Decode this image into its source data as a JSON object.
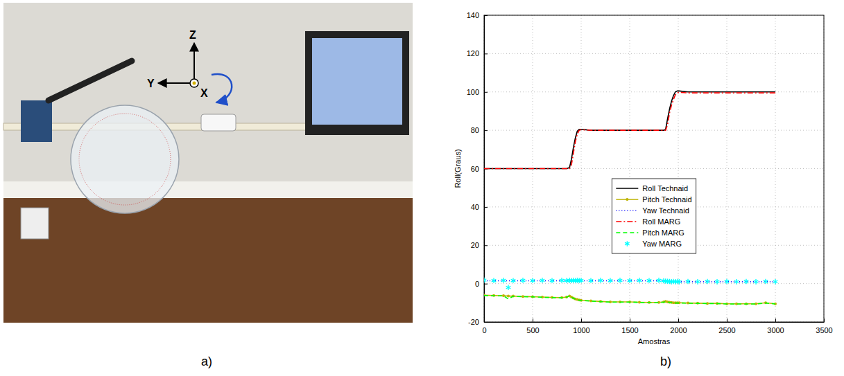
{
  "panel_labels": [
    "a)",
    "b)"
  ],
  "photo": {
    "axis_labels": [
      "Z",
      "Y",
      "X"
    ]
  },
  "chart_data": {
    "type": "line",
    "x_label": "Amostras",
    "y_label": "Roll(Graus)",
    "xlim": [
      0,
      3500
    ],
    "xticks": [
      0,
      500,
      1000,
      1500,
      2000,
      2500,
      3000,
      3500
    ],
    "ylim": [
      -20,
      140
    ],
    "yticks": [
      -20,
      0,
      20,
      40,
      60,
      80,
      100,
      120,
      140
    ],
    "grid": true,
    "legend": "center",
    "x": [
      0,
      100,
      200,
      250,
      300,
      400,
      500,
      600,
      700,
      800,
      850,
      880,
      900,
      920,
      940,
      960,
      980,
      1000,
      1100,
      1200,
      1300,
      1400,
      1500,
      1600,
      1700,
      1800,
      1850,
      1870,
      1890,
      1910,
      1930,
      1950,
      1970,
      1990,
      2010,
      2100,
      2200,
      2300,
      2400,
      2500,
      2600,
      2700,
      2800,
      2900,
      3000
    ],
    "series": [
      {
        "name": "Roll Technaid",
        "color": "#000000",
        "line_style": "solid",
        "marker": "none",
        "values": [
          60,
          60,
          60,
          60,
          60,
          60,
          60,
          60,
          60,
          60,
          60,
          60.5,
          65,
          71,
          76,
          79.5,
          80.5,
          80.5,
          80,
          80,
          80,
          80,
          80,
          80,
          80,
          80,
          80,
          80.5,
          86,
          91,
          95,
          98,
          100,
          100.5,
          100.5,
          100,
          100,
          100,
          100,
          100,
          100,
          100,
          100,
          100,
          100
        ]
      },
      {
        "name": "Pitch Technaid",
        "color": "#bdb300",
        "line_style": "solid",
        "marker": "dot",
        "values": [
          -6,
          -6.2,
          -6.3,
          -6.5,
          -6.5,
          -6.7,
          -6.8,
          -7,
          -7.2,
          -7.3,
          -7,
          -6.5,
          -7,
          -7.5,
          -8,
          -8.3,
          -8.5,
          -8.7,
          -9,
          -9.3,
          -9.5,
          -9.5,
          -9.5,
          -9.7,
          -9.8,
          -9.8,
          -9.5,
          -9.3,
          -9.5,
          -9.7,
          -9.8,
          -10,
          -10,
          -10,
          -10,
          -10.1,
          -10.2,
          -10.3,
          -10.3,
          -10.5,
          -10.5,
          -10.5,
          -10.5,
          -10,
          -10.5
        ]
      },
      {
        "name": "Yaw Technaid",
        "color": "#0000ff",
        "line_style": "dotted",
        "marker": "none",
        "values": [
          1.5,
          1.5,
          1.5,
          1.5,
          1.5,
          1.5,
          1.5,
          1.5,
          1.5,
          1.5,
          1.5,
          1.5,
          1.5,
          1.5,
          1.5,
          1.5,
          1.5,
          1.5,
          1.5,
          1.5,
          1.5,
          1.5,
          1.5,
          1.5,
          1.5,
          1.5,
          1.5,
          1.3,
          1.2,
          1,
          1,
          1,
          1,
          1,
          1,
          1,
          1,
          1,
          1,
          1,
          1,
          1,
          1,
          1,
          1
        ]
      },
      {
        "name": "Roll MARG",
        "color": "#ff0000",
        "line_style": "dashdot",
        "marker": "none",
        "values": [
          60,
          60,
          60,
          60,
          60,
          60,
          60,
          60,
          60,
          60,
          60,
          60,
          62,
          68,
          74,
          78,
          80,
          80.3,
          80,
          80,
          80,
          80,
          80,
          80,
          80,
          80,
          80,
          80,
          83,
          89,
          93,
          96,
          98.5,
          99.5,
          99.8,
          99.5,
          99.5,
          99.5,
          99.5,
          99.5,
          99.5,
          99.5,
          99.5,
          99.5,
          99.5
        ]
      },
      {
        "name": "Pitch MARG",
        "color": "#00ff00",
        "line_style": "dashed",
        "marker": "none",
        "values": [
          -6.2,
          -6.3,
          -6.4,
          -8,
          -6.6,
          -6.8,
          -6.9,
          -7.1,
          -7.3,
          -7.4,
          -7.1,
          -6.3,
          -7.1,
          -7.6,
          -8.1,
          -8.4,
          -8.6,
          -8.8,
          -9.1,
          -9.4,
          -9.6,
          -9.6,
          -9.6,
          -9.8,
          -9.9,
          -9.9,
          -9.6,
          -9.4,
          -9.6,
          -9.8,
          -9.9,
          -10.1,
          -10.1,
          -10.1,
          -10.1,
          -10.2,
          -10.3,
          -10.4,
          -10.4,
          -10.6,
          -10.6,
          -10.6,
          -10.6,
          -10.1,
          -10.6
        ]
      },
      {
        "name": "Yaw MARG",
        "color": "#00ffff",
        "line_style": "none",
        "marker": "asterisk",
        "values": [
          1.8,
          1.6,
          1.7,
          -2,
          1.6,
          1.7,
          1.6,
          1.7,
          1.6,
          1.7,
          1.6,
          1.7,
          1.6,
          1.7,
          1.6,
          1.7,
          1.6,
          1.7,
          1.6,
          1.7,
          1.6,
          1.7,
          1.6,
          1.7,
          1.6,
          1.7,
          1.5,
          1.3,
          1.2,
          1.1,
          1,
          1.1,
          1,
          1.1,
          1,
          1.1,
          1,
          1.1,
          1,
          1.1,
          1,
          1.1,
          1,
          1.1,
          1
        ]
      }
    ]
  }
}
